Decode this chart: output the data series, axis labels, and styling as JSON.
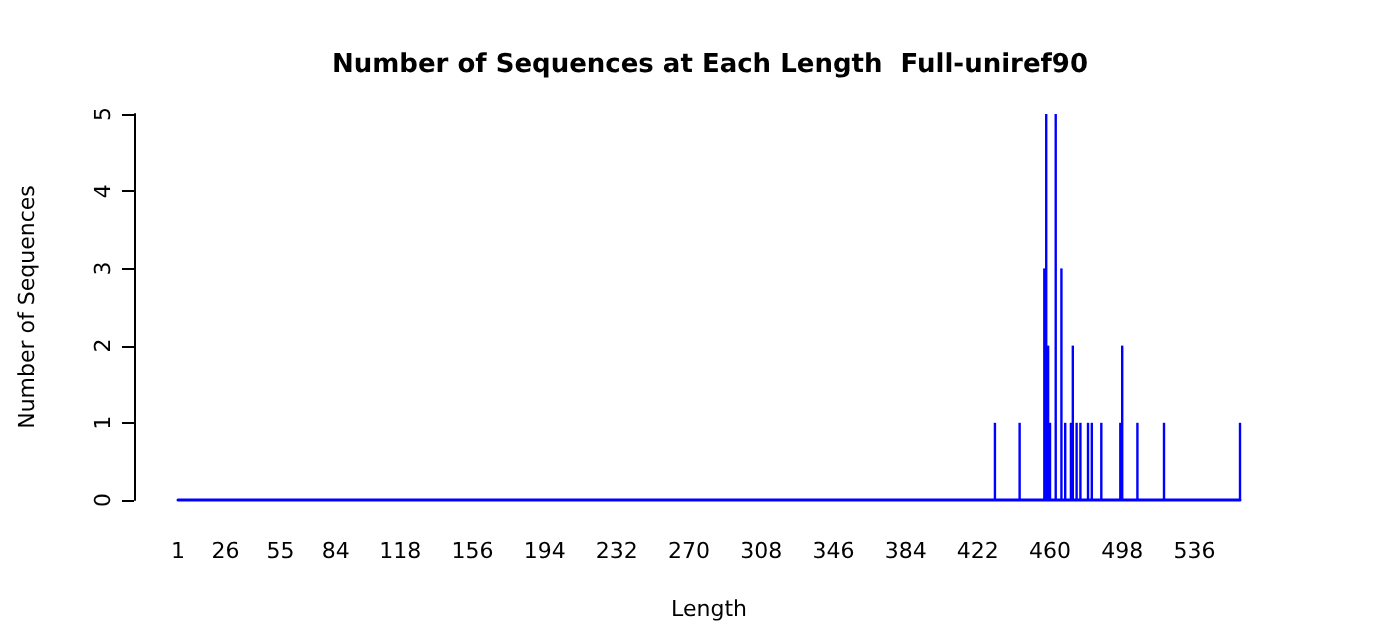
{
  "chart_data": {
    "type": "bar",
    "title": "Number of Sequences at Each Length  Full-uniref90",
    "xlabel": "Length",
    "ylabel": "Number of Sequences",
    "x": [
      431,
      444,
      457,
      458,
      459,
      460,
      463,
      466,
      468,
      471,
      472,
      474,
      476,
      480,
      482,
      487,
      497,
      498,
      506,
      520,
      560
    ],
    "values": [
      1,
      1,
      3,
      5,
      2,
      1,
      5,
      3,
      1,
      1,
      2,
      1,
      1,
      1,
      1,
      1,
      1,
      2,
      1,
      1,
      1
    ],
    "color": "#0000ff",
    "xlim": [
      1,
      560
    ],
    "xticks": [
      1,
      26,
      55,
      84,
      118,
      156,
      194,
      232,
      270,
      308,
      346,
      384,
      422,
      460,
      498,
      536
    ],
    "ylim": [
      0,
      5
    ],
    "yticks": [
      0,
      1,
      2,
      3,
      4,
      5
    ]
  }
}
